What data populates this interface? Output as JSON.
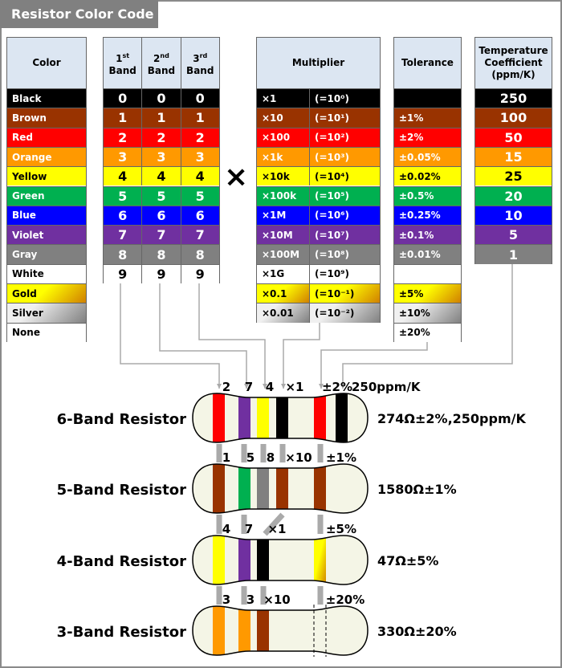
{
  "title": "Resistor Color Code",
  "headers": {
    "color": "Color",
    "band1": [
      "1",
      "st",
      "Band"
    ],
    "band2": [
      "2",
      "nd",
      "Band"
    ],
    "band3": [
      "3",
      "rd",
      "Band"
    ],
    "multiplier": "Multiplier",
    "tolerance": "Tolerance",
    "tempco": "Temperature Coefficient (ppm/K)"
  },
  "multiply_sign": "×",
  "colors": [
    {
      "name": "Black",
      "bg": "#000000",
      "fg": "#ffffff"
    },
    {
      "name": "Brown",
      "bg": "#993300",
      "fg": "#ffffff"
    },
    {
      "name": "Red",
      "bg": "#ff0000",
      "fg": "#ffffff"
    },
    {
      "name": "Orange",
      "bg": "#ff9900",
      "fg": "#ffffff"
    },
    {
      "name": "Yellow",
      "bg": "#ffff00",
      "fg": "#000000"
    },
    {
      "name": "Green",
      "bg": "#00b050",
      "fg": "#ffffff"
    },
    {
      "name": "Blue",
      "bg": "#0000ff",
      "fg": "#ffffff"
    },
    {
      "name": "Violet",
      "bg": "#7030a0",
      "fg": "#ffffff"
    },
    {
      "name": "Gray",
      "bg": "#808080",
      "fg": "#ffffff"
    },
    {
      "name": "White",
      "bg": "#ffffff",
      "fg": "#000000"
    },
    {
      "name": "Gold",
      "bg": "linear-gradient(135deg,#ffff00 45%,#d08000)",
      "fg": "#000000"
    },
    {
      "name": "Silver",
      "bg": "linear-gradient(135deg,#f0f0f0 30%,#808080)",
      "fg": "#000000"
    },
    {
      "name": "None",
      "bg": "#ffffff",
      "fg": "#000000"
    }
  ],
  "digits": [
    "0",
    "1",
    "2",
    "3",
    "4",
    "5",
    "6",
    "7",
    "8",
    "9"
  ],
  "multiplier": [
    {
      "value": "×1",
      "power": "(=10⁰)"
    },
    {
      "value": "×10",
      "power": "(=10¹)"
    },
    {
      "value": "×100",
      "power": "(=10²)"
    },
    {
      "value": "×1k",
      "power": "(=10³)"
    },
    {
      "value": "×10k",
      "power": "(=10⁴)"
    },
    {
      "value": "×100k",
      "power": "(=10⁵)"
    },
    {
      "value": "×1M",
      "power": "(=10⁶)"
    },
    {
      "value": "×10M",
      "power": "(=10⁷)"
    },
    {
      "value": "×100M",
      "power": "(=10⁸)"
    },
    {
      "value": "×1G",
      "power": "(=10⁹)"
    },
    {
      "value": "×0.1",
      "power": "(=10⁻¹)"
    },
    {
      "value": "×0.01",
      "power": "(=10⁻²)"
    }
  ],
  "tolerance": [
    "",
    "±1%",
    "±2%",
    "±0.05%",
    "±0.02%",
    "±0.5%",
    "±0.25%",
    "±0.1%",
    "±0.01%",
    "",
    "±5%",
    "±10%",
    "±20%"
  ],
  "tempco": [
    "250",
    "100",
    "50",
    "15",
    "25",
    "20",
    "10",
    "5",
    "1"
  ],
  "resistors": [
    {
      "label": "6-Band Resistor",
      "value": "274Ω±2%,250ppm/K",
      "band_labels": [
        "2",
        "7",
        "4",
        "×1",
        "±2%",
        "250ppm/K"
      ],
      "bands": [
        "#ff0000",
        "#7030a0",
        "#ffff00",
        "#000000",
        "#ff0000",
        "#000000"
      ]
    },
    {
      "label": "5-Band Resistor",
      "value": "1580Ω±1%",
      "band_labels": [
        "1",
        "5",
        "8",
        "×10",
        "±1%"
      ],
      "bands": [
        "#993300",
        "#00b050",
        "#808080",
        "#993300",
        "#993300"
      ]
    },
    {
      "label": "4-Band Resistor",
      "value": "47Ω±5%",
      "band_labels": [
        "4",
        "7",
        "×1",
        "±5%"
      ],
      "bands": [
        "#ffff00",
        "#7030a0",
        "#000000",
        "gold"
      ]
    },
    {
      "label": "3-Band Resistor",
      "value": "330Ω±20%",
      "band_labels": [
        "3",
        "3",
        "×10",
        "±20%"
      ],
      "bands": [
        "#ff9900",
        "#ff9900",
        "#993300",
        "none"
      ]
    }
  ]
}
